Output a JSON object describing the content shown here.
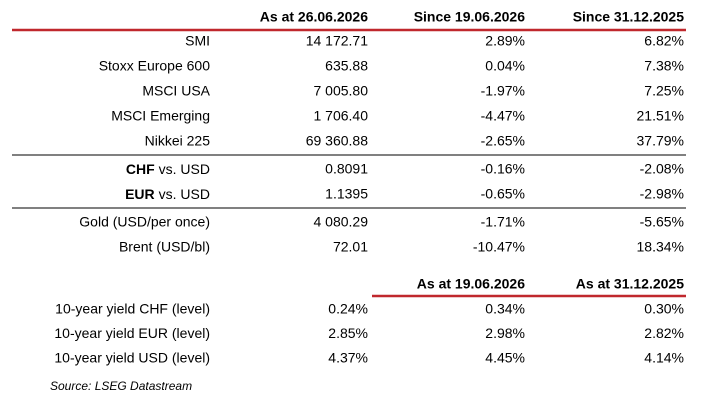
{
  "header": [
    "As at 26.06.2026",
    "Since 19.06.2026",
    "Since 31.12.2025"
  ],
  "groups": [
    {
      "rows": [
        {
          "label": "SMI",
          "cells": [
            "14 172.71",
            "2.89%",
            "6.82%"
          ]
        },
        {
          "label": "Stoxx Europe 600",
          "cells": [
            "635.88",
            "0.04%",
            "7.38%"
          ]
        },
        {
          "label": "MSCI USA",
          "cells": [
            "7 005.80",
            "-1.97%",
            "7.25%"
          ]
        },
        {
          "label": "MSCI Emerging",
          "cells": [
            "1 706.40",
            "-4.47%",
            "21.51%"
          ]
        },
        {
          "label": "Nikkei 225",
          "cells": [
            "69 360.88",
            "-2.65%",
            "37.79%"
          ]
        }
      ]
    },
    {
      "rows": [
        {
          "label_bold": "CHF",
          "label": "vs. USD",
          "cells": [
            "0.8091",
            "-0.16%",
            "-2.08%"
          ]
        },
        {
          "label_bold": "EUR",
          "label": "vs. USD",
          "cells": [
            "1.1395",
            "-0.65%",
            "-2.98%"
          ]
        }
      ]
    },
    {
      "rows": [
        {
          "label": "Gold (USD/per once)",
          "cells": [
            "4 080.29",
            "-1.71%",
            "-5.65%"
          ]
        },
        {
          "label": "Brent (USD/bl)",
          "cells": [
            "72.01",
            "-10.47%",
            "18.34%"
          ]
        }
      ]
    }
  ],
  "yield_header": [
    "As at 19.06.2026",
    "As at 31.12.2025"
  ],
  "yield_rows": [
    {
      "label": "10-year yield CHF (level)",
      "cells": [
        "0.24%",
        "0.34%",
        "0.30%"
      ]
    },
    {
      "label": "10-year yield EUR (level)",
      "cells": [
        "2.85%",
        "2.98%",
        "2.82%"
      ]
    },
    {
      "label": "10-year yield USD (level)",
      "cells": [
        "4.37%",
        "4.45%",
        "4.14%"
      ]
    }
  ],
  "source": "Source: LSEG Datastream"
}
